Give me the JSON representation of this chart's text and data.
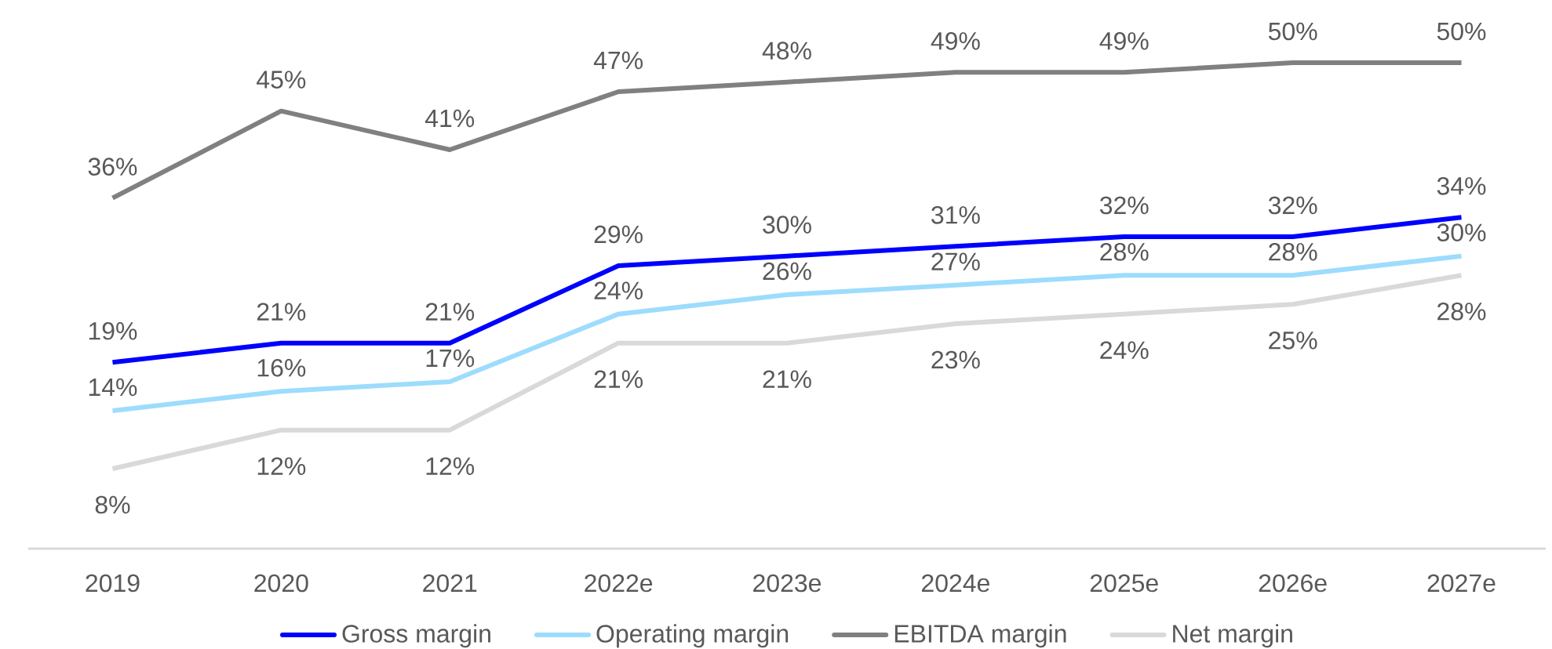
{
  "chart_data": {
    "type": "line",
    "categories": [
      "2019",
      "2020",
      "2021",
      "2022e",
      "2023e",
      "2024e",
      "2025e",
      "2026e",
      "2027e"
    ],
    "series": [
      {
        "name": "Gross margin",
        "color": "#0000ff",
        "values": [
          19,
          21,
          21,
          29,
          30,
          31,
          32,
          32,
          34
        ],
        "value_labels": [
          "19%",
          "21%",
          "21%",
          "29%",
          "30%",
          "31%",
          "32%",
          "32%",
          "34%"
        ]
      },
      {
        "name": "Operating margin",
        "color": "#9ddcfd",
        "values": [
          14,
          16,
          17,
          24,
          26,
          27,
          28,
          28,
          30
        ],
        "value_labels": [
          "14%",
          "16%",
          "17%",
          "24%",
          "26%",
          "27%",
          "28%",
          "28%",
          "30%"
        ]
      },
      {
        "name": "EBITDA margin",
        "color": "#808080",
        "values": [
          36,
          45,
          41,
          47,
          48,
          49,
          49,
          50,
          50
        ],
        "value_labels": [
          "36%",
          "45%",
          "41%",
          "47%",
          "48%",
          "49%",
          "49%",
          "50%",
          "50%"
        ]
      },
      {
        "name": "Net margin",
        "color": "#d9d9d9",
        "values": [
          8,
          12,
          12,
          21,
          21,
          23,
          24,
          25,
          28
        ],
        "value_labels": [
          "8%",
          "12%",
          "12%",
          "21%",
          "21%",
          "23%",
          "24%",
          "25%",
          "28%"
        ]
      }
    ],
    "legend": "bottom"
  }
}
